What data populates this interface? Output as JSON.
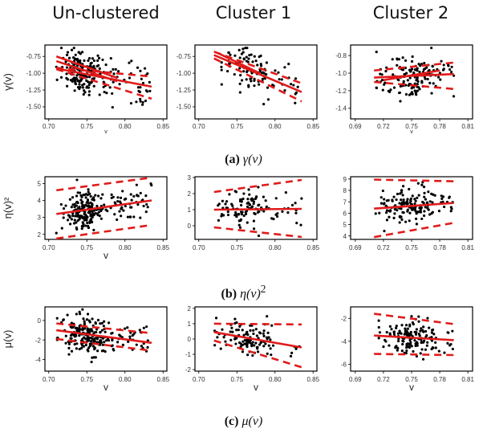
{
  "column_titles": [
    "Un-clustered",
    "Cluster 1",
    "Cluster 2"
  ],
  "captions": [
    {
      "tag": "(a)",
      "math": "γ(v)",
      "sup": ""
    },
    {
      "tag": "(b)",
      "math": "η(v)",
      "sup": "2"
    },
    {
      "tag": "(c)",
      "math": "μ(v)",
      "sup": ""
    }
  ],
  "colors": {
    "points": "#000000",
    "fit": "#e01b1b",
    "frame": "#000000"
  },
  "chart_data": [
    {
      "type": "scatter",
      "row": 0,
      "col": 0,
      "ylabel": "γ(v)",
      "xlabel": "v",
      "xlim": [
        0.695,
        0.855
      ],
      "ylim": [
        -1.68,
        -0.58
      ],
      "xticks": [
        "0.70",
        "0.75",
        "0.80",
        "0.85"
      ],
      "xtick_values": [
        0.7,
        0.75,
        0.8,
        0.85
      ],
      "yticks": [
        "-0.75",
        "-1.00",
        "-1.25",
        "-1.50"
      ],
      "ytick_values": [
        -0.75,
        -1.0,
        -1.25,
        -1.5
      ],
      "n_points": 230,
      "x_range": [
        0.71,
        0.835
      ],
      "x_center": 0.745,
      "fit_lines": [
        {
          "style": "solid",
          "x": [
            0.71,
            0.835
          ],
          "y": [
            -0.93,
            -1.2
          ]
        },
        {
          "style": "dashed",
          "x": [
            0.71,
            0.835
          ],
          "y": [
            -0.92,
            -1.05
          ]
        },
        {
          "style": "dashed",
          "x": [
            0.71,
            0.835
          ],
          "y": [
            -0.94,
            -1.38
          ]
        },
        {
          "style": "solid",
          "x": [
            0.71,
            0.79
          ],
          "y": [
            -0.75,
            -1.07
          ]
        },
        {
          "style": "solid",
          "x": [
            0.71,
            0.79
          ],
          "y": [
            -0.82,
            -1.12
          ]
        }
      ]
    },
    {
      "type": "scatter",
      "row": 0,
      "col": 1,
      "ylabel": "",
      "xlabel": "",
      "xlim": [
        0.695,
        0.855
      ],
      "ylim": [
        -1.68,
        -0.58
      ],
      "xticks": [
        "0.70",
        "0.75",
        "0.80",
        "0.85"
      ],
      "xtick_values": [
        0.7,
        0.75,
        0.8,
        0.85
      ],
      "yticks": [
        "-0.75",
        "-1.00",
        "-1.25",
        "-1.50"
      ],
      "ytick_values": [
        -0.75,
        -1.0,
        -1.25,
        -1.5
      ],
      "n_points": 110,
      "x_range": [
        0.72,
        0.835
      ],
      "x_center": 0.765,
      "fit_lines": [
        {
          "style": "solid",
          "x": [
            0.72,
            0.835
          ],
          "y": [
            -0.73,
            -1.28
          ]
        },
        {
          "style": "dashed",
          "x": [
            0.72,
            0.835
          ],
          "y": [
            -0.68,
            -1.15
          ]
        },
        {
          "style": "dashed",
          "x": [
            0.72,
            0.835
          ],
          "y": [
            -0.78,
            -1.42
          ]
        },
        {
          "style": "solid",
          "x": [
            0.725,
            0.78
          ],
          "y": [
            -0.7,
            -1.0
          ]
        }
      ]
    },
    {
      "type": "scatter",
      "row": 0,
      "col": 2,
      "ylabel": "",
      "xlabel": "v",
      "xlim": [
        0.685,
        0.815
      ],
      "ylim": [
        -1.52,
        -0.68
      ],
      "xticks": [
        "0.69",
        "0.72",
        "0.75",
        "0.78",
        "0.81"
      ],
      "xtick_values": [
        0.69,
        0.72,
        0.75,
        0.78,
        0.81
      ],
      "yticks": [
        "-0.8",
        "-1.0",
        "-1.2",
        "-1.4"
      ],
      "ytick_values": [
        -0.8,
        -1.0,
        -1.2,
        -1.4
      ],
      "n_points": 150,
      "x_range": [
        0.71,
        0.795
      ],
      "x_center": 0.75,
      "fit_lines": [
        {
          "style": "solid",
          "x": [
            0.71,
            0.795
          ],
          "y": [
            -1.05,
            -1.01
          ]
        },
        {
          "style": "dashed",
          "x": [
            0.71,
            0.795
          ],
          "y": [
            -0.97,
            -0.88
          ]
        },
        {
          "style": "dashed",
          "x": [
            0.71,
            0.795
          ],
          "y": [
            -1.1,
            -1.18
          ]
        },
        {
          "style": "solid",
          "x": [
            0.72,
            0.78
          ],
          "y": [
            -1.08,
            -0.97
          ]
        }
      ]
    },
    {
      "type": "scatter",
      "row": 1,
      "col": 0,
      "ylabel": "η(v)²",
      "xlabel": "v",
      "xlim": [
        0.695,
        0.855
      ],
      "ylim": [
        1.7,
        5.4
      ],
      "xticks": [
        "0.70",
        "0.75",
        "0.80",
        "0.85"
      ],
      "xtick_values": [
        0.7,
        0.75,
        0.8,
        0.85
      ],
      "yticks": [
        "2",
        "3",
        "4",
        "5"
      ],
      "ytick_values": [
        2,
        3,
        4,
        5
      ],
      "n_points": 230,
      "x_range": [
        0.71,
        0.835
      ],
      "x_center": 0.75,
      "fit_lines": [
        {
          "style": "solid",
          "x": [
            0.71,
            0.835
          ],
          "y": [
            3.2,
            4.0
          ]
        },
        {
          "style": "dashed",
          "x": [
            0.71,
            0.835
          ],
          "y": [
            4.6,
            5.35
          ]
        },
        {
          "style": "dashed",
          "x": [
            0.71,
            0.835
          ],
          "y": [
            1.75,
            2.55
          ]
        }
      ]
    },
    {
      "type": "scatter",
      "row": 1,
      "col": 1,
      "ylabel": "",
      "xlabel": "",
      "xlim": [
        0.695,
        0.855
      ],
      "ylim": [
        -0.85,
        3.05
      ],
      "xticks": [
        "0.70",
        "0.75",
        "0.80",
        "0.85"
      ],
      "xtick_values": [
        0.7,
        0.75,
        0.8,
        0.85
      ],
      "yticks": [
        "0",
        "1",
        "2",
        "3"
      ],
      "ytick_values": [
        0,
        1,
        2,
        3
      ],
      "n_points": 110,
      "x_range": [
        0.72,
        0.835
      ],
      "x_center": 0.765,
      "fit_lines": [
        {
          "style": "solid",
          "x": [
            0.72,
            0.835
          ],
          "y": [
            1.0,
            1.05
          ]
        },
        {
          "style": "dashed",
          "x": [
            0.72,
            0.835
          ],
          "y": [
            2.1,
            2.85
          ]
        },
        {
          "style": "dashed",
          "x": [
            0.72,
            0.835
          ],
          "y": [
            -0.1,
            -0.7
          ]
        }
      ]
    },
    {
      "type": "scatter",
      "row": 1,
      "col": 2,
      "ylabel": "",
      "xlabel": "",
      "xlim": [
        0.685,
        0.815
      ],
      "ylim": [
        3.7,
        9.2
      ],
      "xticks": [
        "0.69",
        "0.72",
        "0.75",
        "0.78",
        "0.81"
      ],
      "xtick_values": [
        0.69,
        0.72,
        0.75,
        0.78,
        0.81
      ],
      "yticks": [
        "4",
        "5",
        "6",
        "7",
        "8",
        "9"
      ],
      "ytick_values": [
        4,
        5,
        6,
        7,
        8,
        9
      ],
      "n_points": 150,
      "x_range": [
        0.71,
        0.795
      ],
      "x_center": 0.75,
      "fit_lines": [
        {
          "style": "solid",
          "x": [
            0.71,
            0.795
          ],
          "y": [
            6.4,
            6.9
          ]
        },
        {
          "style": "dashed",
          "x": [
            0.71,
            0.795
          ],
          "y": [
            8.95,
            8.8
          ]
        },
        {
          "style": "dashed",
          "x": [
            0.71,
            0.795
          ],
          "y": [
            3.9,
            5.15
          ]
        }
      ]
    },
    {
      "type": "scatter",
      "row": 2,
      "col": 0,
      "ylabel": "μ(v)",
      "xlabel": "v",
      "xlim": [
        0.695,
        0.855
      ],
      "ylim": [
        -5.2,
        1.4
      ],
      "xticks": [
        "0.70",
        "0.75",
        "0.80",
        "0.85"
      ],
      "xtick_values": [
        0.7,
        0.75,
        0.8,
        0.85
      ],
      "yticks": [
        "0",
        "-2",
        "-4"
      ],
      "ytick_values": [
        0,
        -2,
        -4
      ],
      "n_points": 230,
      "x_range": [
        0.71,
        0.835
      ],
      "x_center": 0.75,
      "fit_lines": [
        {
          "style": "solid",
          "x": [
            0.71,
            0.835
          ],
          "y": [
            -1.0,
            -2.3
          ]
        },
        {
          "style": "dashed",
          "x": [
            0.71,
            0.835
          ],
          "y": [
            -0.3,
            -1.3
          ]
        },
        {
          "style": "dashed",
          "x": [
            0.71,
            0.835
          ],
          "y": [
            -1.9,
            -3.1
          ]
        }
      ]
    },
    {
      "type": "scatter",
      "row": 2,
      "col": 1,
      "ylabel": "",
      "xlabel": "v",
      "xlim": [
        0.695,
        0.855
      ],
      "ylim": [
        -2.1,
        2.1
      ],
      "xticks": [
        "0.70",
        "0.75",
        "0.80",
        "0.85"
      ],
      "xtick_values": [
        0.7,
        0.75,
        0.8,
        0.85
      ],
      "yticks": [
        "2",
        "1",
        "0",
        "-1",
        "-2"
      ],
      "ytick_values": [
        2,
        1,
        0,
        -1,
        -2
      ],
      "n_points": 110,
      "x_range": [
        0.72,
        0.835
      ],
      "x_center": 0.765,
      "fit_lines": [
        {
          "style": "solid",
          "x": [
            0.72,
            0.835
          ],
          "y": [
            0.45,
            -0.55
          ]
        },
        {
          "style": "dashed",
          "x": [
            0.72,
            0.835
          ],
          "y": [
            1.0,
            0.95
          ]
        },
        {
          "style": "dashed",
          "x": [
            0.72,
            0.835
          ],
          "y": [
            -0.1,
            -1.85
          ]
        }
      ]
    },
    {
      "type": "scatter",
      "row": 2,
      "col": 2,
      "ylabel": "",
      "xlabel": "v",
      "xlim": [
        0.685,
        0.815
      ],
      "ylim": [
        -6.6,
        -1.0
      ],
      "xticks": [
        "0.69",
        "0.72",
        "0.75",
        "0.78",
        "0.81"
      ],
      "xtick_values": [
        0.69,
        0.72,
        0.75,
        0.78,
        0.81
      ],
      "yticks": [
        "-2",
        "-4",
        "-6"
      ],
      "ytick_values": [
        -2,
        -4,
        -6
      ],
      "n_points": 150,
      "x_range": [
        0.71,
        0.795
      ],
      "x_center": 0.75,
      "fit_lines": [
        {
          "style": "solid",
          "x": [
            0.71,
            0.795
          ],
          "y": [
            -3.5,
            -3.9
          ]
        },
        {
          "style": "dashed",
          "x": [
            0.71,
            0.795
          ],
          "y": [
            -1.6,
            -2.5
          ]
        },
        {
          "style": "dashed",
          "x": [
            0.71,
            0.795
          ],
          "y": [
            -5.1,
            -5.2
          ]
        }
      ]
    }
  ]
}
